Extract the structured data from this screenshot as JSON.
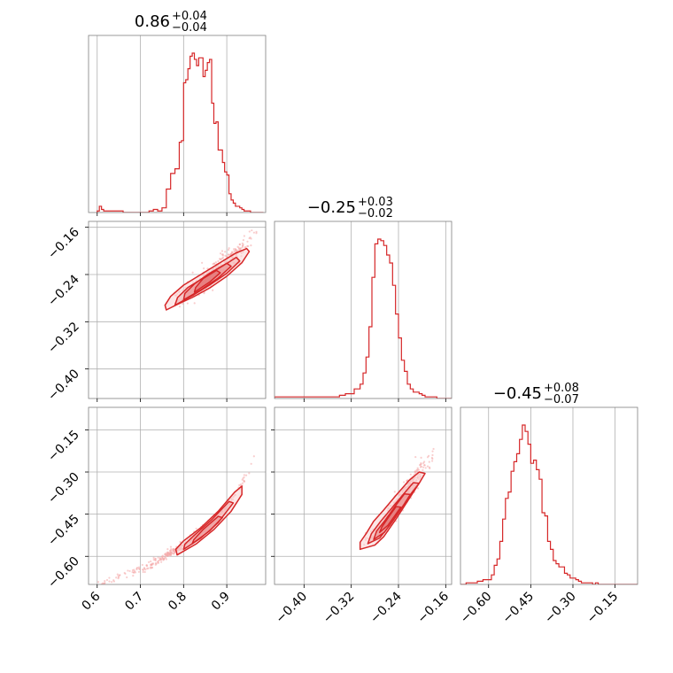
{
  "chart_data": {
    "type": "corner",
    "colors": {
      "line": "#d62728",
      "scatter": "#f4a6a6",
      "grid": "#b0b0b0",
      "frame": "#808080"
    },
    "parameters": [
      {
        "title_value": "0.86",
        "title_plus": "+0.04",
        "title_minus": "−0.04",
        "range": [
          0.58,
          0.99
        ],
        "ticks": [
          0.6,
          0.7,
          0.8,
          0.9
        ],
        "tick_labels": [
          "0.6",
          "0.7",
          "0.8",
          "0.9"
        ]
      },
      {
        "title_value": "−0.25",
        "title_plus": "+0.03",
        "title_minus": "−0.02",
        "range": [
          -0.45,
          -0.15
        ],
        "ticks": [
          -0.4,
          -0.32,
          -0.24,
          -0.16
        ],
        "tick_labels": [
          "−0.40",
          "−0.32",
          "−0.24",
          "−0.16"
        ]
      },
      {
        "title_value": "−0.45",
        "title_plus": "+0.08",
        "title_minus": "−0.07",
        "range": [
          -0.7,
          -0.07
        ],
        "ticks": [
          -0.6,
          -0.45,
          -0.3,
          -0.15
        ],
        "tick_labels": [
          "−0.60",
          "−0.45",
          "−0.30",
          "−0.15"
        ]
      }
    ],
    "histograms": [
      {
        "bins": [
          0.6,
          0.605,
          0.61,
          0.615,
          0.62,
          0.625,
          0.63,
          0.64,
          0.65,
          0.66,
          0.68,
          0.7,
          0.72,
          0.73,
          0.74,
          0.75,
          0.76,
          0.77,
          0.78,
          0.79,
          0.795,
          0.8,
          0.805,
          0.81,
          0.815,
          0.82,
          0.825,
          0.83,
          0.835,
          0.84,
          0.845,
          0.85,
          0.855,
          0.86,
          0.865,
          0.87,
          0.875,
          0.88,
          0.885,
          0.89,
          0.895,
          0.9,
          0.905,
          0.91,
          0.915,
          0.92,
          0.925,
          0.93,
          0.935,
          0.94,
          0.945,
          0.95,
          0.955,
          0.96,
          0.965,
          0.97,
          0.975,
          0.98,
          0.985
        ],
        "counts": [
          1,
          4,
          2,
          1,
          1,
          1,
          1,
          1,
          1,
          0,
          0,
          0,
          1,
          2,
          1,
          3,
          15,
          25,
          28,
          45,
          46,
          83,
          85,
          92,
          100,
          102,
          98,
          94,
          99,
          99,
          87,
          91,
          96,
          98,
          70,
          57,
          58,
          40,
          40,
          32,
          26,
          24,
          12,
          8,
          6,
          4,
          4,
          3,
          2,
          1,
          1,
          1,
          0,
          0,
          0,
          0,
          0,
          0
        ]
      },
      {
        "bins": [
          -0.45,
          -0.4,
          -0.36,
          -0.34,
          -0.33,
          -0.32,
          -0.315,
          -0.31,
          -0.305,
          -0.3,
          -0.295,
          -0.29,
          -0.285,
          -0.28,
          -0.275,
          -0.27,
          -0.265,
          -0.26,
          -0.255,
          -0.25,
          -0.245,
          -0.24,
          -0.235,
          -0.23,
          -0.225,
          -0.22,
          -0.215,
          -0.21,
          -0.205,
          -0.2,
          -0.195,
          -0.19,
          -0.185,
          -0.18,
          -0.175,
          -0.17,
          -0.165,
          -0.16,
          -0.155,
          -0.15
        ],
        "counts": [
          1,
          1,
          1,
          2,
          3,
          3,
          6,
          6,
          9,
          16,
          26,
          45,
          76,
          97,
          100,
          99,
          96,
          90,
          85,
          71,
          53,
          38,
          24,
          17,
          9,
          6,
          4,
          4,
          3,
          2,
          1,
          1,
          1,
          1,
          0,
          0,
          0,
          0,
          0
        ]
      },
      {
        "bins": [
          -0.7,
          -0.68,
          -0.66,
          -0.64,
          -0.63,
          -0.62,
          -0.61,
          -0.6,
          -0.59,
          -0.58,
          -0.57,
          -0.56,
          -0.55,
          -0.54,
          -0.53,
          -0.52,
          -0.51,
          -0.5,
          -0.49,
          -0.48,
          -0.47,
          -0.46,
          -0.45,
          -0.44,
          -0.43,
          -0.42,
          -0.41,
          -0.4,
          -0.39,
          -0.38,
          -0.37,
          -0.36,
          -0.35,
          -0.34,
          -0.33,
          -0.32,
          -0.31,
          -0.3,
          -0.29,
          -0.28,
          -0.27,
          -0.26,
          -0.25,
          -0.24,
          -0.23,
          -0.22,
          -0.21,
          -0.2,
          -0.19,
          -0.18,
          -0.17,
          -0.16,
          -0.15,
          -0.14,
          -0.13,
          -0.12,
          -0.11,
          -0.1,
          -0.09,
          -0.08,
          -0.07
        ],
        "counts": [
          0,
          1,
          1,
          2,
          2,
          3,
          3,
          3,
          6,
          12,
          16,
          27,
          41,
          54,
          58,
          71,
          77,
          82,
          91,
          100,
          96,
          88,
          76,
          78,
          72,
          66,
          45,
          43,
          27,
          22,
          15,
          13,
          11,
          11,
          7,
          6,
          4,
          4,
          3,
          2,
          1,
          1,
          1,
          1,
          0,
          1,
          0,
          0,
          0,
          0,
          0,
          0,
          0,
          0,
          0,
          0,
          0,
          0,
          0,
          0
        ]
      }
    ],
    "joint": {
      "1_0": {
        "ridge": [
          [
            0.76,
            -0.293
          ],
          [
            0.8,
            -0.275
          ],
          [
            0.84,
            -0.253
          ],
          [
            0.88,
            -0.232
          ],
          [
            0.92,
            -0.208
          ],
          [
            0.95,
            -0.185
          ],
          [
            0.97,
            -0.168
          ]
        ],
        "contours": [
          [
            [
              0.76,
              -0.3
            ],
            [
              0.79,
              -0.289
            ],
            [
              0.82,
              -0.279
            ],
            [
              0.86,
              -0.263
            ],
            [
              0.9,
              -0.243
            ],
            [
              0.935,
              -0.22
            ],
            [
              0.952,
              -0.201
            ],
            [
              0.946,
              -0.196
            ],
            [
              0.92,
              -0.204
            ],
            [
              0.88,
              -0.222
            ],
            [
              0.84,
              -0.24
            ],
            [
              0.8,
              -0.258
            ],
            [
              0.77,
              -0.277
            ],
            [
              0.757,
              -0.292
            ]
          ],
          [
            [
              0.78,
              -0.292
            ],
            [
              0.82,
              -0.276
            ],
            [
              0.86,
              -0.258
            ],
            [
              0.9,
              -0.238
            ],
            [
              0.93,
              -0.217
            ],
            [
              0.922,
              -0.211
            ],
            [
              0.89,
              -0.226
            ],
            [
              0.85,
              -0.244
            ],
            [
              0.81,
              -0.262
            ],
            [
              0.786,
              -0.279
            ]
          ],
          [
            [
              0.8,
              -0.283
            ],
            [
              0.84,
              -0.266
            ],
            [
              0.88,
              -0.246
            ],
            [
              0.91,
              -0.226
            ],
            [
              0.9,
              -0.221
            ],
            [
              0.86,
              -0.238
            ],
            [
              0.825,
              -0.256
            ],
            [
              0.803,
              -0.272
            ]
          ],
          [
            [
              0.825,
              -0.27
            ],
            [
              0.86,
              -0.253
            ],
            [
              0.885,
              -0.237
            ],
            [
              0.876,
              -0.233
            ],
            [
              0.845,
              -0.247
            ],
            [
              0.828,
              -0.262
            ]
          ]
        ]
      },
      "2_0": {
        "ridge": [
          [
            0.6,
            -0.7
          ],
          [
            0.7,
            -0.645
          ],
          [
            0.76,
            -0.598
          ],
          [
            0.8,
            -0.56
          ],
          [
            0.84,
            -0.512
          ],
          [
            0.88,
            -0.455
          ],
          [
            0.92,
            -0.385
          ],
          [
            0.95,
            -0.3
          ],
          [
            0.97,
            -0.215
          ],
          [
            0.985,
            -0.14
          ]
        ],
        "contours": [
          [
            [
              0.785,
              -0.595
            ],
            [
              0.83,
              -0.555
            ],
            [
              0.87,
              -0.505
            ],
            [
              0.91,
              -0.44
            ],
            [
              0.935,
              -0.38
            ],
            [
              0.935,
              -0.35
            ],
            [
              0.918,
              -0.372
            ],
            [
              0.88,
              -0.44
            ],
            [
              0.84,
              -0.498
            ],
            [
              0.8,
              -0.545
            ],
            [
              0.782,
              -0.575
            ]
          ],
          [
            [
              0.8,
              -0.575
            ],
            [
              0.84,
              -0.535
            ],
            [
              0.88,
              -0.48
            ],
            [
              0.915,
              -0.41
            ],
            [
              0.905,
              -0.405
            ],
            [
              0.865,
              -0.47
            ],
            [
              0.825,
              -0.525
            ],
            [
              0.803,
              -0.557
            ]
          ],
          [
            [
              0.82,
              -0.555
            ],
            [
              0.86,
              -0.51
            ],
            [
              0.89,
              -0.462
            ],
            [
              0.88,
              -0.458
            ],
            [
              0.845,
              -0.505
            ],
            [
              0.824,
              -0.54
            ]
          ]
        ]
      },
      "2_1": {
        "ridge": [
          [
            -0.3,
            -0.56
          ],
          [
            -0.28,
            -0.52
          ],
          [
            -0.26,
            -0.47
          ],
          [
            -0.24,
            -0.41
          ],
          [
            -0.22,
            -0.345
          ],
          [
            -0.2,
            -0.29
          ],
          [
            -0.18,
            -0.24
          ]
        ],
        "contours": [
          [
            [
              -0.305,
              -0.575
            ],
            [
              -0.28,
              -0.56
            ],
            [
              -0.265,
              -0.53
            ],
            [
              -0.245,
              -0.47
            ],
            [
              -0.225,
              -0.405
            ],
            [
              -0.205,
              -0.34
            ],
            [
              -0.195,
              -0.305
            ],
            [
              -0.205,
              -0.3
            ],
            [
              -0.222,
              -0.33
            ],
            [
              -0.245,
              -0.385
            ],
            [
              -0.265,
              -0.435
            ],
            [
              -0.282,
              -0.475
            ],
            [
              -0.295,
              -0.52
            ],
            [
              -0.305,
              -0.55
            ]
          ],
          [
            [
              -0.292,
              -0.555
            ],
            [
              -0.272,
              -0.535
            ],
            [
              -0.255,
              -0.49
            ],
            [
              -0.237,
              -0.435
            ],
            [
              -0.218,
              -0.375
            ],
            [
              -0.205,
              -0.34
            ],
            [
              -0.215,
              -0.338
            ],
            [
              -0.232,
              -0.38
            ],
            [
              -0.252,
              -0.43
            ],
            [
              -0.27,
              -0.475
            ],
            [
              -0.286,
              -0.52
            ]
          ],
          [
            [
              -0.282,
              -0.54
            ],
            [
              -0.264,
              -0.515
            ],
            [
              -0.25,
              -0.475
            ],
            [
              -0.232,
              -0.42
            ],
            [
              -0.22,
              -0.38
            ],
            [
              -0.23,
              -0.378
            ],
            [
              -0.245,
              -0.42
            ],
            [
              -0.262,
              -0.47
            ],
            [
              -0.277,
              -0.51
            ]
          ],
          [
            [
              -0.272,
              -0.515
            ],
            [
              -0.258,
              -0.49
            ],
            [
              -0.246,
              -0.455
            ],
            [
              -0.236,
              -0.425
            ],
            [
              -0.244,
              -0.423
            ],
            [
              -0.255,
              -0.455
            ],
            [
              -0.268,
              -0.495
            ]
          ]
        ]
      }
    }
  }
}
